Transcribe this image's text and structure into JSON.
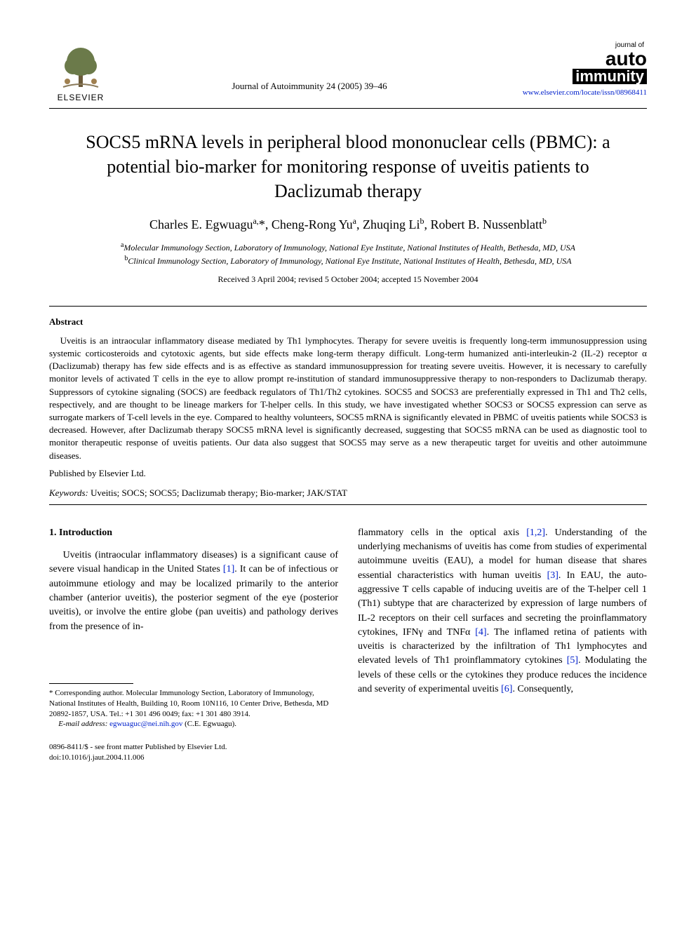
{
  "header": {
    "publisher_label": "ELSEVIER",
    "journal_ref": "Journal of Autoimmunity 24 (2005) 39–46",
    "journal_logo_small": "journal of",
    "journal_logo_auto": "auto",
    "journal_logo_immunity": "immunity",
    "journal_url": "www.elsevier.com/locate/issn/08968411"
  },
  "article": {
    "title": "SOCS5 mRNA levels in peripheral blood mononuclear cells (PBMC): a potential bio-marker for monitoring response of uveitis patients to Daclizumab therapy",
    "authors_html": "Charles E. Egwuagu<sup>a,</sup>*, Cheng-Rong Yu<sup>a</sup>, Zhuqing Li<sup>b</sup>, Robert B. Nussenblatt<sup>b</sup>",
    "affiliations": [
      {
        "sup": "a",
        "text": "Molecular Immunology Section, Laboratory of Immunology, National Eye Institute, National Institutes of Health, Bethesda, MD, USA"
      },
      {
        "sup": "b",
        "text": "Clinical Immunology Section, Laboratory of Immunology, National Eye Institute, National Institutes of Health, Bethesda, MD, USA"
      }
    ],
    "dates": "Received 3 April 2004; revised 5 October 2004; accepted 15 November 2004"
  },
  "abstract": {
    "heading": "Abstract",
    "body": "Uveitis is an intraocular inflammatory disease mediated by Th1 lymphocytes. Therapy for severe uveitis is frequently long-term immunosuppression using systemic corticosteroids and cytotoxic agents, but side effects make long-term therapy difficult. Long-term humanized anti-interleukin-2 (IL-2) receptor α (Daclizumab) therapy has few side effects and is as effective as standard immunosuppression for treating severe uveitis. However, it is necessary to carefully monitor levels of activated T cells in the eye to allow prompt re-institution of standard immunosuppressive therapy to non-responders to Daclizumab therapy. Suppressors of cytokine signaling (SOCS) are feedback regulators of Th1/Th2 cytokines. SOCS5 and SOCS3 are preferentially expressed in Th1 and Th2 cells, respectively, and are thought to be lineage markers for T-helper cells. In this study, we have investigated whether SOCS3 or SOCS5 expression can serve as surrogate markers of T-cell levels in the eye. Compared to healthy volunteers, SOCS5 mRNA is significantly elevated in PBMC of uveitis patients while SOCS3 is decreased. However, after Daclizumab therapy SOCS5 mRNA level is significantly decreased, suggesting that SOCS5 mRNA can be used as diagnostic tool to monitor therapeutic response of uveitis patients. Our data also suggest that SOCS5 may serve as a new therapeutic target for uveitis and other autoimmune diseases.",
    "published_by": "Published by Elsevier Ltd.",
    "keywords_label": "Keywords:",
    "keywords": "Uveitis; SOCS; SOCS5; Daclizumab therapy; Bio-marker; JAK/STAT"
  },
  "intro": {
    "heading": "1. Introduction",
    "col1_para": "Uveitis (intraocular inflammatory diseases) is a significant cause of severe visual handicap in the United States [1]. It can be of infectious or autoimmune etiology and may be localized primarily to the anterior chamber (anterior uveitis), the posterior segment of the eye (posterior uveitis), or involve the entire globe (pan uveitis) and pathology derives from the presence of in-",
    "col2_para": "flammatory cells in the optical axis [1,2]. Understanding of the underlying mechanisms of uveitis has come from studies of experimental autoimmune uveitis (EAU), a model for human disease that shares essential characteristics with human uveitis [3]. In EAU, the auto-aggressive T cells capable of inducing uveitis are of the T-helper cell 1 (Th1) subtype that are characterized by expression of large numbers of IL-2 receptors on their cell surfaces and secreting the proinflammatory cytokines, IFNγ and TNFα [4]. The inflamed retina of patients with uveitis is characterized by the infiltration of Th1 lymphocytes and elevated levels of Th1 proinflammatory cytokines [5]. Modulating the levels of these cells or the cytokines they produce reduces the incidence and severity of experimental uveitis [6]. Consequently,"
  },
  "footnote": {
    "corresponding": "* Corresponding author. Molecular Immunology Section, Laboratory of Immunology, National Institutes of Health, Building 10, Room 10N116, 10 Center Drive, Bethesda, MD 20892-1857, USA. Tel.: +1 301 496 0049; fax: +1 301 480 3914.",
    "email_label": "E-mail address:",
    "email": "egwuaguc@nei.nih.gov",
    "email_person": "(C.E. Egwuagu)."
  },
  "bottom": {
    "line1": "0896-8411/$ - see front matter Published by Elsevier Ltd.",
    "line2": "doi:10.1016/j.jaut.2004.11.006"
  },
  "refs": {
    "r1": "[1]",
    "r12": "[1,2]",
    "r3": "[3]",
    "r4": "[4]",
    "r5": "[5]",
    "r6": "[6]"
  },
  "colors": {
    "link": "#0020cc",
    "text": "#000000",
    "bg": "#ffffff"
  },
  "typography": {
    "title_fontsize": 26,
    "author_fontsize": 18,
    "body_fontsize": 14,
    "abstract_fontsize": 13,
    "footnote_fontsize": 11
  }
}
